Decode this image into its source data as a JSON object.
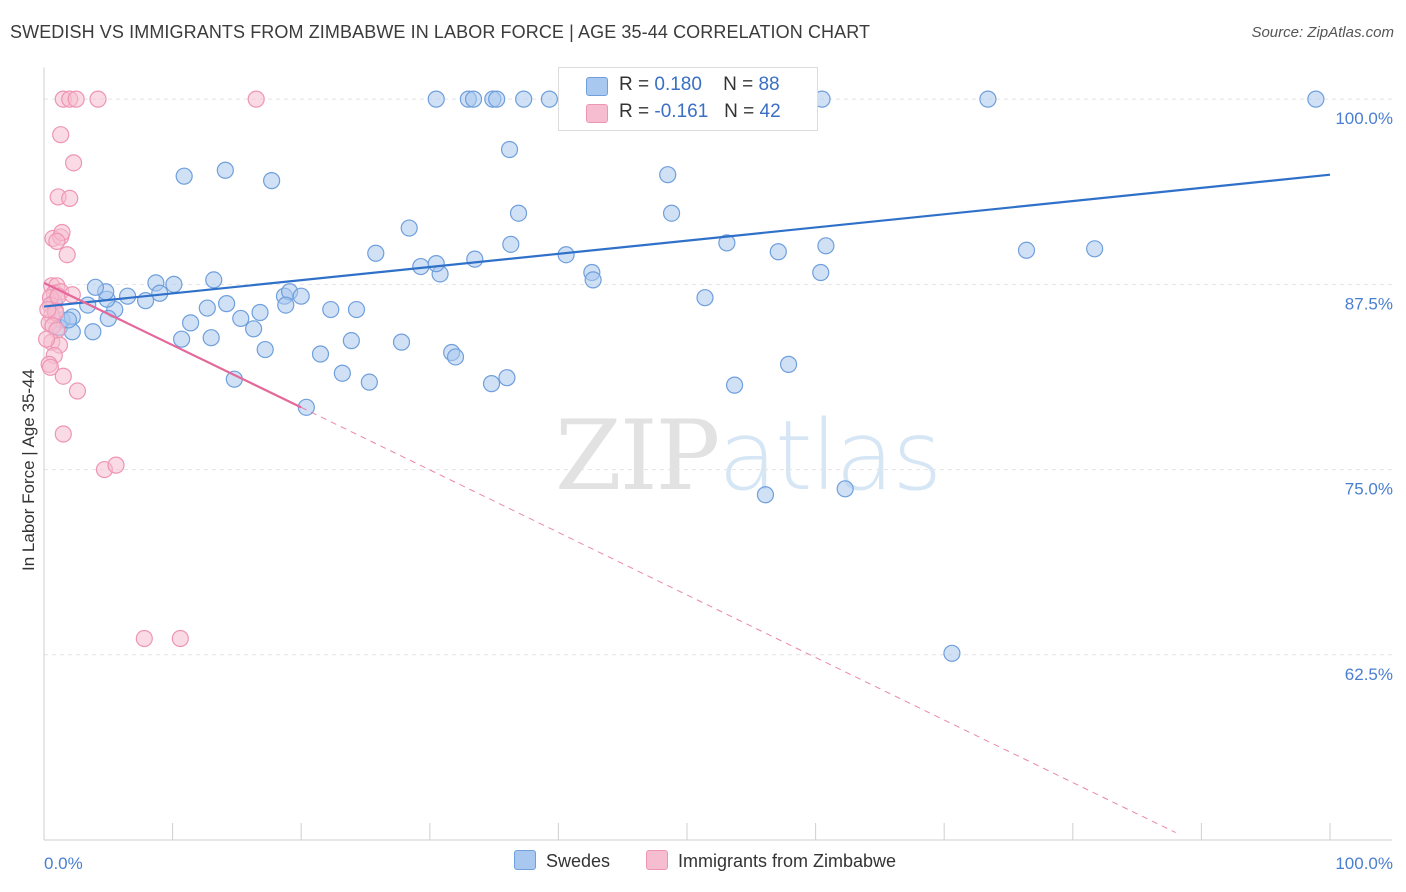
{
  "header": {
    "title": "SWEDISH VS IMMIGRANTS FROM ZIMBABWE IN LABOR FORCE | AGE 35-44 CORRELATION CHART",
    "source": "Source: ZipAtlas.com"
  },
  "watermark": {
    "zip": "ZIP",
    "atlas": "atlas"
  },
  "legend": {
    "rows": [
      {
        "r_label": "R =",
        "r_value": "0.180",
        "n_label": "N =",
        "n_value": "88",
        "color": "#a9c8ef"
      },
      {
        "r_label": "R =",
        "r_value": "-0.161",
        "n_label": "N =",
        "n_value": "42",
        "color": "#f6bdd0"
      }
    ]
  },
  "bottom_legend": {
    "swedes": "Swedes",
    "zimbabwe": "Immigrants from Zimbabwe"
  },
  "colors": {
    "blue_fill": "#a9c8ef",
    "blue_stroke": "#6f9fdc",
    "blue_line": "#2f70c9",
    "pink_fill": "#f6bdd0",
    "pink_stroke": "#ee95b4",
    "pink_line": "#e5689a",
    "grid": "#e4e4e4",
    "tick_label": "#4a7fcf"
  },
  "chart_data": {
    "type": "scatter",
    "title": "SWEDISH VS IMMIGRANTS FROM ZIMBABWE IN LABOR FORCE | AGE 35-44 CORRELATION CHART",
    "xlabel": "",
    "ylabel": "In Labor Force | Age 35-44",
    "xlim": [
      0,
      100
    ],
    "ylim": [
      50,
      102
    ],
    "x_tick_labels": [
      "0.0%",
      "100.0%"
    ],
    "y_ticks": [
      62.5,
      75.0,
      87.5,
      100.0
    ],
    "y_tick_labels": [
      "62.5%",
      "75.0%",
      "87.5%",
      "100.0%"
    ],
    "grid": true,
    "series": [
      {
        "name": "Swedes",
        "r": 0.18,
        "n": 88,
        "trend": {
          "x": [
            0,
            100
          ],
          "y": [
            86.0,
            94.9
          ]
        },
        "points": [
          [
            30.5,
            100
          ],
          [
            33,
            100
          ],
          [
            33.4,
            100
          ],
          [
            34.9,
            100
          ],
          [
            35.2,
            100
          ],
          [
            37.3,
            100
          ],
          [
            39.3,
            100
          ],
          [
            42.4,
            100
          ],
          [
            45.1,
            100
          ],
          [
            49.6,
            100
          ],
          [
            51.7,
            100
          ],
          [
            60.5,
            100
          ],
          [
            73.4,
            100
          ],
          [
            98.9,
            100
          ],
          [
            36.2,
            96.6
          ],
          [
            14.1,
            95.2
          ],
          [
            10.9,
            94.8
          ],
          [
            17.7,
            94.5
          ],
          [
            36.9,
            92.3
          ],
          [
            36.3,
            90.2
          ],
          [
            25.8,
            89.6
          ],
          [
            29.3,
            88.7
          ],
          [
            13.2,
            87.8
          ],
          [
            8.7,
            87.6
          ],
          [
            10.1,
            87.5
          ],
          [
            5.5,
            85.8
          ],
          [
            1.4,
            85.1
          ],
          [
            5,
            85.2
          ],
          [
            2.2,
            85.3
          ],
          [
            3.4,
            86.1
          ],
          [
            4.9,
            86.5
          ],
          [
            4.8,
            87
          ],
          [
            6.5,
            86.7
          ],
          [
            7.9,
            86.4
          ],
          [
            9,
            86.9
          ],
          [
            1.2,
            84.6
          ],
          [
            2.2,
            84.3
          ],
          [
            3.8,
            84.3
          ],
          [
            11.4,
            84.9
          ],
          [
            12.7,
            85.9
          ],
          [
            14.2,
            86.2
          ],
          [
            15.3,
            85.2
          ],
          [
            13,
            83.9
          ],
          [
            10.7,
            83.8
          ],
          [
            16.3,
            84.5
          ],
          [
            16.8,
            85.6
          ],
          [
            18.7,
            86.7
          ],
          [
            19.1,
            87
          ],
          [
            18.8,
            86.1
          ],
          [
            20,
            86.7
          ],
          [
            22.3,
            85.8
          ],
          [
            24.3,
            85.8
          ],
          [
            23.9,
            83.7
          ],
          [
            17.2,
            83.1
          ],
          [
            21.5,
            82.8
          ],
          [
            14.8,
            81.1
          ],
          [
            20.4,
            79.2
          ],
          [
            25.3,
            80.9
          ],
          [
            23.2,
            81.5
          ],
          [
            27.8,
            83.6
          ],
          [
            31.7,
            82.9
          ],
          [
            32,
            82.6
          ],
          [
            36,
            81.2
          ],
          [
            34.8,
            80.8
          ],
          [
            30.8,
            88.2
          ],
          [
            33.5,
            89.2
          ],
          [
            30.5,
            88.9
          ],
          [
            28.4,
            91.3
          ],
          [
            4,
            87.3
          ],
          [
            1.9,
            85.1
          ],
          [
            0.8,
            86.3
          ],
          [
            40.6,
            89.5
          ],
          [
            42.6,
            88.3
          ],
          [
            48.5,
            94.9
          ],
          [
            48.8,
            92.3
          ],
          [
            53.1,
            90.3
          ],
          [
            42.7,
            87.8
          ],
          [
            51.4,
            86.6
          ],
          [
            53.7,
            80.7
          ],
          [
            57.9,
            82.1
          ],
          [
            57.1,
            89.7
          ],
          [
            76.4,
            89.8
          ],
          [
            81.7,
            89.9
          ],
          [
            60.8,
            90.1
          ],
          [
            60.4,
            88.3
          ],
          [
            62.3,
            73.7
          ],
          [
            56.1,
            73.3
          ],
          [
            70.6,
            62.6
          ]
        ]
      },
      {
        "name": "Immigrants from Zimbabwe",
        "r": -0.161,
        "n": 42,
        "trend": {
          "x": [
            0,
            20
          ],
          "y": [
            87.6,
            79.2
          ],
          "extended_x": [
            20,
            88
          ],
          "extended_y": [
            79.2,
            50.5
          ]
        },
        "points": [
          [
            1.5,
            100
          ],
          [
            2,
            100
          ],
          [
            2.5,
            100
          ],
          [
            4.2,
            100
          ],
          [
            16.5,
            100
          ],
          [
            1.3,
            97.6
          ],
          [
            2.3,
            95.7
          ],
          [
            1.1,
            93.4
          ],
          [
            2,
            93.3
          ],
          [
            0.7,
            90.6
          ],
          [
            1.3,
            90.7
          ],
          [
            1.4,
            91.0
          ],
          [
            1,
            90.4
          ],
          [
            1.8,
            89.5
          ],
          [
            0.6,
            87.4
          ],
          [
            1,
            87.4
          ],
          [
            0.8,
            86.9
          ],
          [
            1.3,
            87
          ],
          [
            0.5,
            86.6
          ],
          [
            0.5,
            86.1
          ],
          [
            1.1,
            86.7
          ],
          [
            0.9,
            85.7
          ],
          [
            0.6,
            85.4
          ],
          [
            0.4,
            84.9
          ],
          [
            0.9,
            85.6
          ],
          [
            0.7,
            84.7
          ],
          [
            1,
            84.4
          ],
          [
            0.6,
            83.6
          ],
          [
            1.2,
            83.4
          ],
          [
            0.8,
            82.7
          ],
          [
            1.5,
            81.3
          ],
          [
            0.4,
            82.1
          ],
          [
            2.6,
            80.3
          ],
          [
            1.5,
            77.4
          ],
          [
            4.7,
            75
          ],
          [
            5.6,
            75.3
          ],
          [
            7.8,
            63.6
          ],
          [
            10.6,
            63.6
          ],
          [
            0.2,
            83.8
          ],
          [
            0.3,
            85.8
          ],
          [
            0.5,
            81.9
          ],
          [
            2.2,
            86.8
          ]
        ]
      }
    ]
  }
}
